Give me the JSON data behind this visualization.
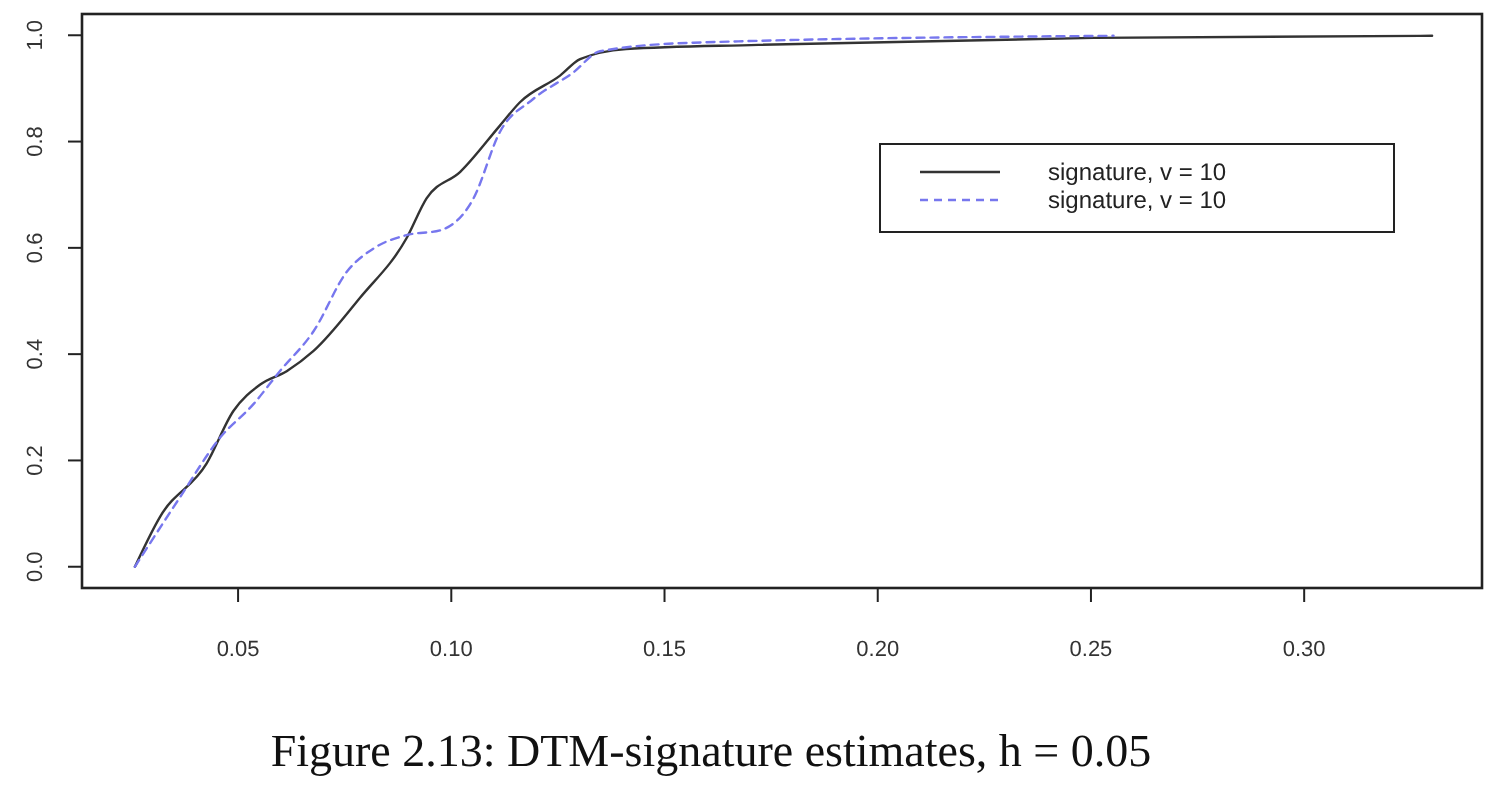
{
  "chart_data": {
    "type": "line",
    "xlim": [
      0.0134,
      0.3417
    ],
    "ylim": [
      -0.04,
      1.04
    ],
    "xticks": [
      {
        "value": 0.05,
        "label": "0.05"
      },
      {
        "value": 0.1,
        "label": "0.10"
      },
      {
        "value": 0.15,
        "label": "0.15"
      },
      {
        "value": 0.2,
        "label": "0.20"
      },
      {
        "value": 0.25,
        "label": "0.25"
      },
      {
        "value": 0.3,
        "label": "0.30"
      }
    ],
    "yticks": [
      {
        "value": 0,
        "label": "0.0"
      },
      {
        "value": 0.2,
        "label": "0.2"
      },
      {
        "value": 0.4,
        "label": "0.4"
      },
      {
        "value": 0.6,
        "label": "0.6"
      },
      {
        "value": 0.8,
        "label": "0.8"
      },
      {
        "value": 1,
        "label": "1.0"
      }
    ],
    "legend": "top right",
    "grid": false,
    "annotations": [
      "Figure 2.13:  DTM-signature estimates, h = 0.05"
    ],
    "series": [
      {
        "name": "signature, v = 10",
        "color": "#333333",
        "line_style": "solid",
        "x": [
          0.0258,
          0.0317,
          0.0426,
          0.0489,
          0.0552,
          0.0614,
          0.0677,
          0.0786,
          0.0895,
          0.0942,
          0.1021,
          0.1114,
          0.1161,
          0.1255,
          0.1302,
          0.141,
          0.172,
          0.2506,
          0.33
        ],
        "values": [
          0,
          0.094,
          0.194,
          0.293,
          0.343,
          0.368,
          0.406,
          0.506,
          0.618,
          0.693,
          0.743,
          0.83,
          0.874,
          0.924,
          0.955,
          0.974,
          0.982,
          0.995,
          0.999
        ]
      },
      {
        "name": "signature, v = 10",
        "color": "#7777ee",
        "line_style": "dashed",
        "x": [
          0.0258,
          0.0364,
          0.0458,
          0.0536,
          0.0598,
          0.0677,
          0.0755,
          0.0818,
          0.0895,
          0.0974,
          0.1052,
          0.1114,
          0.1192,
          0.1286,
          0.1349,
          0.1568,
          0.2553
        ],
        "values": [
          0,
          0.131,
          0.243,
          0.306,
          0.368,
          0.443,
          0.555,
          0.599,
          0.624,
          0.633,
          0.693,
          0.818,
          0.88,
          0.93,
          0.97,
          0.986,
          0.999
        ]
      }
    ]
  }
}
